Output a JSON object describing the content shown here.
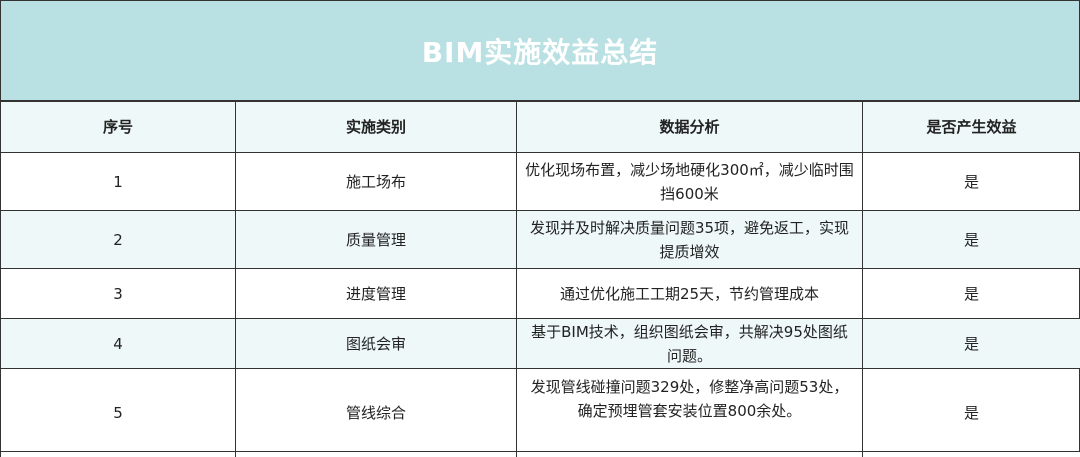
{
  "title": "BIM实施效益总结",
  "headers": [
    "序号",
    "实施类别",
    "数据分析",
    "是否产生效益"
  ],
  "rows": [
    {
      "no": "1",
      "category": "施工场布",
      "analysis": "优化现场布置，减少场地硬化300㎡，减少临时围挡600米",
      "benefit": "是"
    },
    {
      "no": "2",
      "category": "质量管理",
      "analysis": "发现并及时解决质量问题35项，避免返工，实现提质增效",
      "benefit": "是"
    },
    {
      "no": "3",
      "category": "进度管理",
      "analysis": "通过优化施工工期25天，节约管理成本",
      "benefit": "是"
    },
    {
      "no": "4",
      "category": "图纸会审",
      "analysis": "基于BIM技术，组织图纸会审，共解决95处图纸问题。",
      "benefit": "是"
    },
    {
      "no": "5",
      "category": "管线综合",
      "analysis": "发现管线碰撞问题329处，修整净高问题53处，确定预埋管套安装位置800余处。",
      "benefit": "是"
    }
  ],
  "colors": {
    "title_bg": "#b9e0e2",
    "alt_row_bg": "#eef8f8"
  }
}
